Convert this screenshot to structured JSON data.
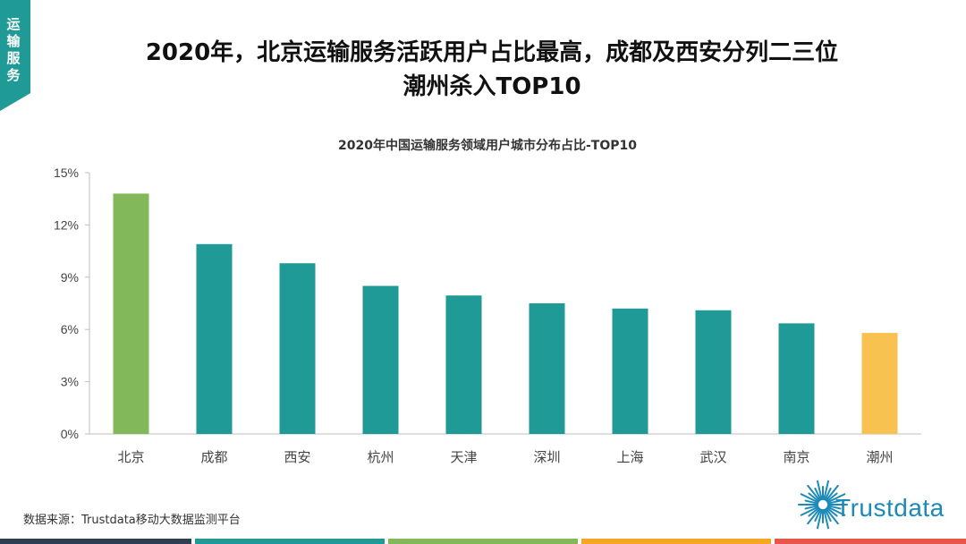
{
  "section_tab": "运输服务",
  "headline": {
    "line1": "2020年，北京运输服务活跃用户占比最高，成都及西安分列二三位",
    "line2": "潮州杀入TOP10"
  },
  "colors": {
    "teal": "#1f9a96",
    "green": "#82b85a",
    "yellow": "#f7c24f",
    "dark": "#2f3f4f",
    "orange": "#f5a623",
    "red": "#e8564b",
    "logo_blue": "#1c8ab8",
    "grid": "#d9d9d9",
    "axis": "#bfbfbf"
  },
  "chart_data": {
    "type": "bar",
    "title": "2020年中国运输服务领域用户城市分布占比-TOP10",
    "categories": [
      "北京",
      "成都",
      "西安",
      "杭州",
      "天津",
      "深圳",
      "上海",
      "武汉",
      "南京",
      "潮州"
    ],
    "values": [
      13.8,
      10.9,
      9.8,
      8.5,
      7.95,
      7.5,
      7.2,
      7.1,
      6.35,
      5.8
    ],
    "bar_colors": [
      "#82b85a",
      "#1f9a96",
      "#1f9a96",
      "#1f9a96",
      "#1f9a96",
      "#1f9a96",
      "#1f9a96",
      "#1f9a96",
      "#1f9a96",
      "#f7c24f"
    ],
    "yticks": [
      0,
      3,
      6,
      9,
      12,
      15
    ],
    "ytick_labels": [
      "0%",
      "3%",
      "6%",
      "9%",
      "12%",
      "15%"
    ],
    "ylim": [
      0,
      15
    ],
    "xlabel": "",
    "ylabel": "",
    "grid": false,
    "legend": "none"
  },
  "source_note": "数据来源：Trustdata移动大数据监测平台",
  "logo": {
    "text": "Trustdata",
    "icon": "starburst-icon"
  }
}
